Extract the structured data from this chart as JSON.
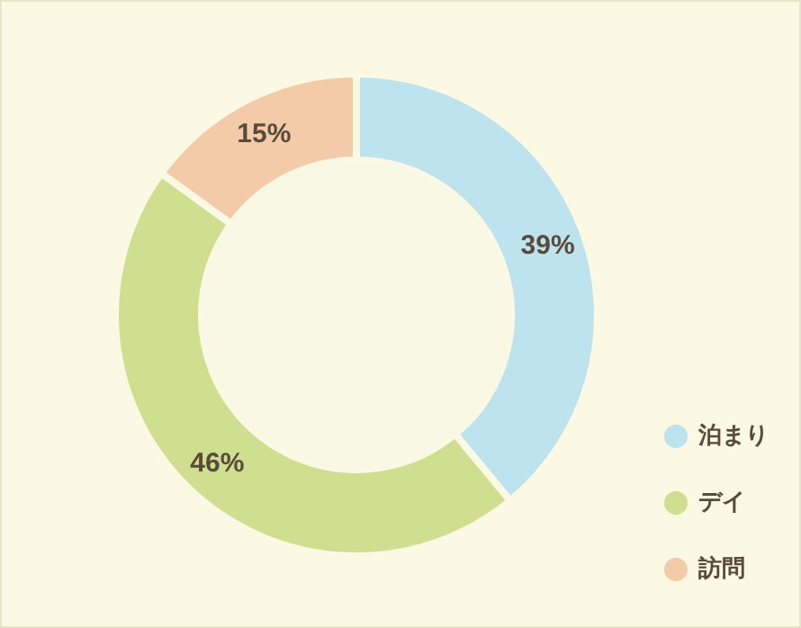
{
  "chart_data": {
    "type": "donut",
    "categories": [
      "泊まり",
      "デイ",
      "訪問"
    ],
    "values": [
      39,
      46,
      15
    ],
    "colors": [
      "#bde3ef",
      "#cfdf8f",
      "#f3cba8"
    ],
    "value_labels": [
      "39%",
      "46%",
      "15%"
    ],
    "legend": "bottom right"
  }
}
